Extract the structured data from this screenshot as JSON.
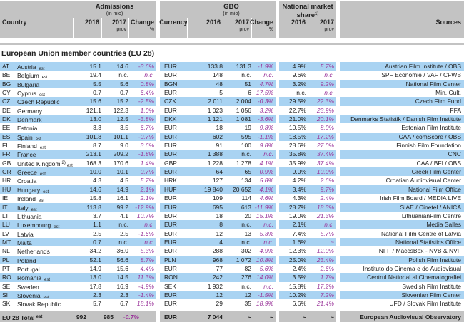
{
  "colors": {
    "row_blue": "#a9d3f2",
    "header_gray": "#c3c3c3",
    "change_purple": "#993399"
  },
  "header": {
    "country": "Country",
    "admissions": {
      "title": "Admissions",
      "unit": "(in mio)"
    },
    "gbo": {
      "title": "GBO",
      "unit": "(in mio)"
    },
    "currency": "Currency",
    "nms": {
      "line1": "National market",
      "line2": "share",
      "note": "1)"
    },
    "sources": "Sources",
    "y2016": "2016",
    "y2017": "2017",
    "prov": "prov",
    "change": "Change",
    "pct": "%"
  },
  "section_title": "European Union member countries (EU 28)",
  "rows": [
    {
      "code": "AT",
      "name": "Austria",
      "sup": "",
      "sub": "est",
      "adm_2016": "15.1",
      "adm_2017": "14.6",
      "adm_chg": "-3.6%",
      "currency": "EUR",
      "gbo_2016": "133.8",
      "gbo_2017": "131.3",
      "gbo_chg": "-1.9%",
      "nms_2016": "4.9%",
      "nms_2017": "5.7%",
      "source": "Austrian Film Institute / OBS"
    },
    {
      "code": "BE",
      "name": "Belgium",
      "sup": "",
      "sub": "est",
      "adm_2016": "19.4",
      "adm_2017": "n.c.",
      "adm_chg": "n.c.",
      "currency": "EUR",
      "gbo_2016": "148",
      "gbo_2017": "n.c.",
      "gbo_chg": "n.c.",
      "nms_2016": "9.6%",
      "nms_2017": "n.c.",
      "source": "SPF Economie / VAF / CFWB"
    },
    {
      "code": "BG",
      "name": "Bulgaria",
      "sup": "",
      "sub": "",
      "adm_2016": "5.5",
      "adm_2017": "5.6",
      "adm_chg": "0.8%",
      "currency": "BGN",
      "gbo_2016": "48",
      "gbo_2017": "51",
      "gbo_chg": "4.7%",
      "nms_2016": "3.2%",
      "nms_2017": "9.2%",
      "source": "National Film Center"
    },
    {
      "code": "CY",
      "name": "Cyprus",
      "sup": "",
      "sub": "est",
      "adm_2016": "0.7",
      "adm_2017": "0.7",
      "adm_chg": "6.4%",
      "currency": "EUR",
      "gbo_2016": "5",
      "gbo_2017": "6",
      "gbo_chg": "17.5%",
      "nms_2016": "n.c.",
      "nms_2017": "n.c.",
      "source": "Min. Cult."
    },
    {
      "code": "CZ",
      "name": "Czech Republic",
      "sup": "",
      "sub": "",
      "adm_2016": "15.6",
      "adm_2017": "15.2",
      "adm_chg": "-2.5%",
      "currency": "CZK",
      "gbo_2016": "2 011",
      "gbo_2017": "2 004",
      "gbo_chg": "-0.3%",
      "nms_2016": "29.5%",
      "nms_2017": "22.3%",
      "source": "Czech Film Fund"
    },
    {
      "code": "DE",
      "name": "Germany",
      "sup": "",
      "sub": "",
      "adm_2016": "121.1",
      "adm_2017": "122.3",
      "adm_chg": "1.0%",
      "currency": "EUR",
      "gbo_2016": "1 023",
      "gbo_2017": "1 056",
      "gbo_chg": "3.2%",
      "nms_2016": "22.7%",
      "nms_2017": "23.9%",
      "source": "FFA"
    },
    {
      "code": "DK",
      "name": "Denmark",
      "sup": "",
      "sub": "",
      "adm_2016": "13.0",
      "adm_2017": "12.5",
      "adm_chg": "-3.8%",
      "currency": "DKK",
      "gbo_2016": "1 121",
      "gbo_2017": "1 081",
      "gbo_chg": "-3.6%",
      "nms_2016": "21.0%",
      "nms_2017": "20.1%",
      "source": "Danmarks Statistik / Danish Film Institute"
    },
    {
      "code": "EE",
      "name": "Estonia",
      "sup": "",
      "sub": "",
      "adm_2016": "3.3",
      "adm_2017": "3.5",
      "adm_chg": "6.7%",
      "currency": "EUR",
      "gbo_2016": "18",
      "gbo_2017": "19",
      "gbo_chg": "9.8%",
      "nms_2016": "10.5%",
      "nms_2017": "8.0%",
      "source": "Estonian Film Institute"
    },
    {
      "code": "ES",
      "name": "Spain",
      "sup": "",
      "sub": "est",
      "adm_2016": "101.8",
      "adm_2017": "101.1",
      "adm_chg": "-0.7%",
      "currency": "EUR",
      "gbo_2016": "602",
      "gbo_2017": "595",
      "gbo_chg": "-1.1%",
      "nms_2016": "18.5%",
      "nms_2017": "17.2%",
      "source": "ICAA / comScore / OBS"
    },
    {
      "code": "FI",
      "name": "Finland",
      "sup": "",
      "sub": "est",
      "adm_2016": "8.7",
      "adm_2017": "9.0",
      "adm_chg": "3.6%",
      "currency": "EUR",
      "gbo_2016": "91",
      "gbo_2017": "100",
      "gbo_chg": "9.8%",
      "nms_2016": "28.6%",
      "nms_2017": "27.0%",
      "source": "Finnish Film Foundation"
    },
    {
      "code": "FR",
      "name": "France",
      "sup": "",
      "sub": "",
      "adm_2016": "213.1",
      "adm_2017": "209.2",
      "adm_chg": "-1.8%",
      "currency": "EUR",
      "gbo_2016": "1 388",
      "gbo_2017": "n.c.",
      "gbo_chg": "n.c.",
      "nms_2016": "35.8%",
      "nms_2017": "37.4%",
      "source": "CNC"
    },
    {
      "code": "GB",
      "name": "United Kingdom",
      "sup": "2)",
      "sub": "est",
      "adm_2016": "168.3",
      "adm_2017": "170.6",
      "adm_chg": "1.4%",
      "currency": "GBP",
      "gbo_2016": "1 228",
      "gbo_2017": "1 278",
      "gbo_chg": "4.1%",
      "nms_2016": "35.9%",
      "nms_2017": "37.4%",
      "source": "CAA / BFI / OBS"
    },
    {
      "code": "GR",
      "name": "Greece",
      "sup": "",
      "sub": "est",
      "adm_2016": "10.0",
      "adm_2017": "10.1",
      "adm_chg": "0.7%",
      "currency": "EUR",
      "gbo_2016": "64",
      "gbo_2017": "65",
      "gbo_chg": "0.9%",
      "nms_2016": "9.0%",
      "nms_2017": "10.0%",
      "source": "Greek Film Center"
    },
    {
      "code": "HR",
      "name": "Croatia",
      "sup": "",
      "sub": "",
      "adm_2016": "4.3",
      "adm_2017": "4.5",
      "adm_chg": "5.7%",
      "currency": "HRK",
      "gbo_2016": "127",
      "gbo_2017": "134",
      "gbo_chg": "5.8%",
      "nms_2016": "4.2%",
      "nms_2017": "2.6%",
      "source": "Croatian Audiovisual Center"
    },
    {
      "code": "HU",
      "name": "Hungary",
      "sup": "",
      "sub": "est",
      "adm_2016": "14.6",
      "adm_2017": "14.9",
      "adm_chg": "2.1%",
      "currency": "HUF",
      "gbo_2016": "19 840",
      "gbo_2017": "20 652",
      "gbo_chg": "4.1%",
      "nms_2016": "3.4%",
      "nms_2017": "9.7%",
      "source": "National Film Office"
    },
    {
      "code": "IE",
      "name": "Ireland",
      "sup": "",
      "sub": "est",
      "adm_2016": "15.8",
      "adm_2017": "16.1",
      "adm_chg": "2.1%",
      "currency": "EUR",
      "gbo_2016": "109",
      "gbo_2017": "114",
      "gbo_chg": "4.6%",
      "nms_2016": "4.3%",
      "nms_2017": "2.4%",
      "source": "Irish Film Board / MEDIA LIVE"
    },
    {
      "code": "IT",
      "name": "Italy",
      "sup": "",
      "sub": "est",
      "adm_2016": "113.8",
      "adm_2017": "99.2",
      "adm_chg": "-12.9%",
      "currency": "EUR",
      "gbo_2016": "695",
      "gbo_2017": "613",
      "gbo_chg": "-11.9%",
      "nms_2016": "28.7%",
      "nms_2017": "18.3%",
      "source": "SIAE / Cinetel / ANICA"
    },
    {
      "code": "LT",
      "name": "Lithuania",
      "sup": "",
      "sub": "",
      "adm_2016": "3.7",
      "adm_2017": "4.1",
      "adm_chg": "10.7%",
      "currency": "EUR",
      "gbo_2016": "18",
      "gbo_2017": "20",
      "gbo_chg": "15.1%",
      "nms_2016": "19.0%",
      "nms_2017": "21.3%",
      "source": "LithuanianFilm Centre"
    },
    {
      "code": "LU",
      "name": "Luxembourg",
      "sup": "",
      "sub": "est",
      "adm_2016": "1.1",
      "adm_2017": "n.c.",
      "adm_chg": "n.c.",
      "currency": "EUR",
      "gbo_2016": "8",
      "gbo_2017": "n.c.",
      "gbo_chg": "n.c.",
      "nms_2016": "2.1%",
      "nms_2017": "n.c.",
      "source": "Media Salles"
    },
    {
      "code": "LV",
      "name": "Latvia",
      "sup": "",
      "sub": "",
      "adm_2016": "2.5",
      "adm_2017": "2.5",
      "adm_chg": "-1.6%",
      "currency": "EUR",
      "gbo_2016": "12",
      "gbo_2017": "13",
      "gbo_chg": "5.3%",
      "nms_2016": "7.4%",
      "nms_2017": "5.7%",
      "source": "National Film Centre of Latvia"
    },
    {
      "code": "MT",
      "name": "Malta",
      "sup": "",
      "sub": "",
      "adm_2016": "0.7",
      "adm_2017": "n.c.",
      "adm_chg": "n.c.",
      "currency": "EUR",
      "gbo_2016": "4",
      "gbo_2017": "n.c.",
      "gbo_chg": "n.c.",
      "nms_2016": "1.6%",
      "nms_2017": "~",
      "source": "National Statistics Office"
    },
    {
      "code": "NL",
      "name": "Netherlands",
      "sup": "",
      "sub": "",
      "adm_2016": "34.2",
      "adm_2017": "36.0",
      "adm_chg": "5.3%",
      "currency": "EUR",
      "gbo_2016": "288",
      "gbo_2017": "302",
      "gbo_chg": "4.9%",
      "nms_2016": "12.3%",
      "nms_2017": "12.0%",
      "source": "NFF / MaccsBox - NVB & NVF"
    },
    {
      "code": "PL",
      "name": "Poland",
      "sup": "",
      "sub": "",
      "adm_2016": "52.1",
      "adm_2017": "56.6",
      "adm_chg": "8.7%",
      "currency": "PLN",
      "gbo_2016": "968",
      "gbo_2017": "1 072",
      "gbo_chg": "10.8%",
      "nms_2016": "25.0%",
      "nms_2017": "23.4%",
      "source": "Polish Film Institute"
    },
    {
      "code": "PT",
      "name": "Portugal",
      "sup": "",
      "sub": "",
      "adm_2016": "14.9",
      "adm_2017": "15.6",
      "adm_chg": "4.4%",
      "currency": "EUR",
      "gbo_2016": "77",
      "gbo_2017": "82",
      "gbo_chg": "5.6%",
      "nms_2016": "2.4%",
      "nms_2017": "2.6%",
      "source": "Instituto do Cinema e do Audiovisual"
    },
    {
      "code": "RO",
      "name": "Romania",
      "sup": "",
      "sub": "est",
      "adm_2016": "13.0",
      "adm_2017": "14.5",
      "adm_chg": "11.3%",
      "currency": "RON",
      "gbo_2016": "242",
      "gbo_2017": "276",
      "gbo_chg": "14.0%",
      "nms_2016": "3.5%",
      "nms_2017": "1.7%",
      "source": "Centrul National al Cinematografiei"
    },
    {
      "code": "SE",
      "name": "Sweden",
      "sup": "",
      "sub": "",
      "adm_2016": "17.8",
      "adm_2017": "16.9",
      "adm_chg": "-4.9%",
      "currency": "SEK",
      "gbo_2016": "1 932",
      "gbo_2017": "n.c.",
      "gbo_chg": "n.c.",
      "nms_2016": "15.8%",
      "nms_2017": "17.2%",
      "source": "Swedish Film Institute"
    },
    {
      "code": "SI",
      "name": "Slovenia",
      "sup": "",
      "sub": "est",
      "adm_2016": "2.3",
      "adm_2017": "2.3",
      "adm_chg": "-1.4%",
      "currency": "EUR",
      "gbo_2016": "12",
      "gbo_2017": "12",
      "gbo_chg": "-1.5%",
      "nms_2016": "10.2%",
      "nms_2017": "7.2%",
      "source": "Slovenian Film Center"
    },
    {
      "code": "SK",
      "name": "Slovak Republic",
      "sup": "",
      "sub": "",
      "adm_2016": "5.7",
      "adm_2017": "6.7",
      "adm_chg": "18.1%",
      "currency": "EUR",
      "gbo_2016": "29",
      "gbo_2017": "35",
      "gbo_chg": "18.9%",
      "nms_2016": "6.6%",
      "nms_2017": "21.4%",
      "source": "UFD / Slovak Film Institute"
    }
  ],
  "total": {
    "code": "",
    "name": "EU 28 Total",
    "sup": "est",
    "sub": "",
    "adm_2016": "992",
    "adm_2017": "985",
    "adm_chg": "-0.7%",
    "currency": "EUR",
    "gbo_2016": "7 044",
    "gbo_2017": "~",
    "gbo_chg": "~",
    "nms_2016": "~",
    "nms_2017": "~",
    "source": "European Audiovisual Observatory"
  }
}
